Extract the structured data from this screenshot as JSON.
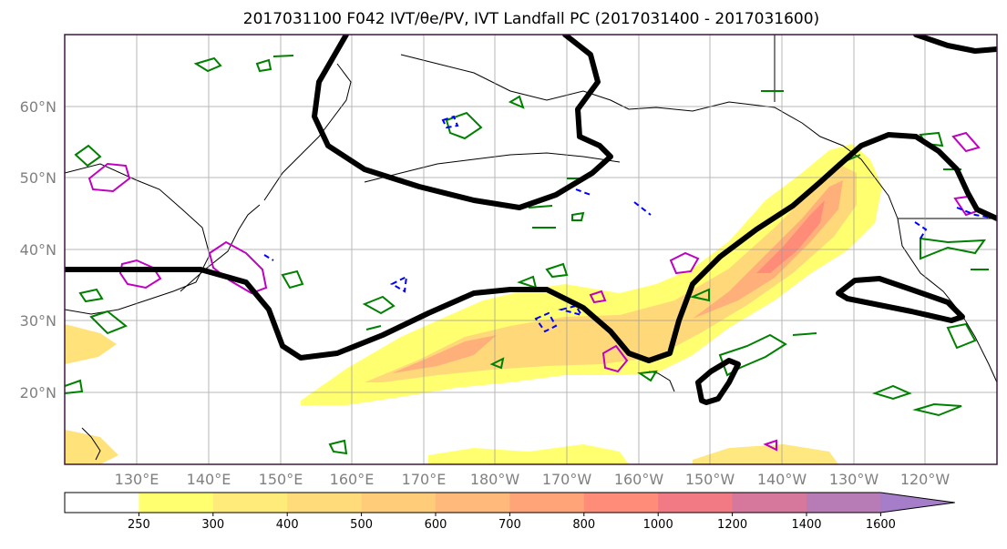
{
  "chart_data": {
    "type": "map-contour",
    "title": "2017031100 F042 IVT/θe/PV, IVT Landfall PC (2017031400 - 2017031600)",
    "region": {
      "lon_range": [
        "120°E",
        "110°W"
      ],
      "lat_range": [
        "10°N",
        "70°N"
      ]
    },
    "lat_ticks": [
      "20°N",
      "30°N",
      "40°N",
      "50°N",
      "60°N"
    ],
    "lon_ticks": [
      "130°E",
      "140°E",
      "150°E",
      "160°E",
      "170°E",
      "180°W",
      "170°W",
      "160°W",
      "150°W",
      "140°W",
      "130°W",
      "120°W"
    ],
    "gridlines": true,
    "colorbar": {
      "orientation": "horizontal",
      "levels": [
        250,
        300,
        400,
        500,
        600,
        700,
        800,
        1000,
        1200,
        1400,
        1600
      ],
      "colors": [
        "#ffffff",
        "#ffff70",
        "#ffeb7a",
        "#ffdb7a",
        "#ffcc7a",
        "#ffb97a",
        "#ffa378",
        "#ff8c78",
        "#f27a85",
        "#d6789c",
        "#b77bb6",
        "#a57dc8"
      ],
      "extend": "max"
    },
    "series": [
      {
        "name": "IVT",
        "style": "filled",
        "colors_hex": [
          "#ffff70",
          "#ffcc7a",
          "#ff8c78"
        ]
      },
      {
        "name": "θe",
        "style": "contour",
        "color": "#008000"
      },
      {
        "name": "PV",
        "style": "contour",
        "color": "#c000c0"
      },
      {
        "name": "PV-negative",
        "style": "dashed-contour",
        "color": "#0000ff"
      },
      {
        "name": "IVT Landfall PC",
        "style": "thick-contour",
        "color": "#000000"
      }
    ],
    "colors": {
      "coast": "#000000",
      "grid": "#999999",
      "frame": "#3d1a40"
    }
  }
}
